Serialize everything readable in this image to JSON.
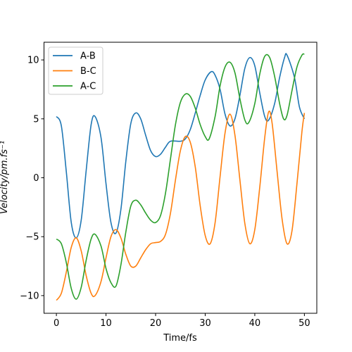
{
  "chart_data": {
    "type": "line",
    "title": "",
    "xlabel": "Time/fs",
    "ylabel": "Velocity/pm.fs⁻¹",
    "xlim": [
      -2.5,
      52.5
    ],
    "ylim": [
      -11.5,
      11.5
    ],
    "x_ticks": [
      "0",
      "10",
      "20",
      "30",
      "40",
      "50"
    ],
    "y_ticks": [
      "−10",
      "−5",
      "0",
      "5",
      "10"
    ],
    "grid": false,
    "legend_position": "top-left",
    "series": [
      {
        "name": "A-B",
        "color": "#1f77b4",
        "points": [
          [
            0,
            5.2
          ],
          [
            1,
            4.4
          ],
          [
            2,
            0.5
          ],
          [
            3,
            -3.8
          ],
          [
            4,
            -5.1
          ],
          [
            5,
            -3.6
          ],
          [
            6,
            0.6
          ],
          [
            7,
            4.5
          ],
          [
            7.8,
            5.2
          ],
          [
            9,
            3.4
          ],
          [
            10,
            -0.5
          ],
          [
            11,
            -3.8
          ],
          [
            12,
            -4.7
          ],
          [
            13,
            -2.7
          ],
          [
            14,
            1.4
          ],
          [
            15,
            4.6
          ],
          [
            16,
            5.5
          ],
          [
            17,
            5.0
          ],
          [
            18,
            3.6
          ],
          [
            19,
            2.3
          ],
          [
            20,
            1.8
          ],
          [
            21,
            2.0
          ],
          [
            22,
            2.6
          ],
          [
            23,
            3.1
          ],
          [
            25,
            3.1
          ],
          [
            26,
            3.3
          ],
          [
            27,
            4.1
          ],
          [
            28,
            5.5
          ],
          [
            29,
            7.0
          ],
          [
            30,
            8.3
          ],
          [
            31.2,
            9.0
          ],
          [
            32,
            8.7
          ],
          [
            33,
            7.5
          ],
          [
            34,
            5.4
          ],
          [
            35,
            4.4
          ],
          [
            36,
            5.0
          ],
          [
            37,
            7.0
          ],
          [
            38,
            9.3
          ],
          [
            39,
            10.2
          ],
          [
            40,
            9.5
          ],
          [
            41,
            7.2
          ],
          [
            42,
            5.2
          ],
          [
            42.8,
            4.9
          ],
          [
            44,
            6.3
          ],
          [
            45,
            8.5
          ],
          [
            46,
            10.2
          ],
          [
            46.5,
            10.4
          ],
          [
            48,
            8.5
          ],
          [
            49,
            6.0
          ],
          [
            50,
            5.0
          ]
        ]
      },
      {
        "name": "B-C",
        "color": "#ff7f0e",
        "points": [
          [
            0,
            -10.4
          ],
          [
            1,
            -9.8
          ],
          [
            2,
            -8.0
          ],
          [
            3,
            -5.9
          ],
          [
            4,
            -5.1
          ],
          [
            5,
            -6.2
          ],
          [
            6,
            -8.3
          ],
          [
            7,
            -9.8
          ],
          [
            7.8,
            -10.0
          ],
          [
            9,
            -8.8
          ],
          [
            10,
            -6.8
          ],
          [
            11,
            -5.0
          ],
          [
            12,
            -4.4
          ],
          [
            13,
            -5.1
          ],
          [
            14,
            -6.5
          ],
          [
            15,
            -7.5
          ],
          [
            16,
            -7.5
          ],
          [
            17,
            -6.8
          ],
          [
            18,
            -6.1
          ],
          [
            19,
            -5.6
          ],
          [
            20,
            -5.5
          ],
          [
            21,
            -5.4
          ],
          [
            22,
            -4.8
          ],
          [
            23,
            -3.0
          ],
          [
            24,
            -0.2
          ],
          [
            25,
            2.3
          ],
          [
            26,
            3.5
          ],
          [
            27,
            3.0
          ],
          [
            28,
            0.9
          ],
          [
            29,
            -2.4
          ],
          [
            30,
            -4.9
          ],
          [
            31,
            -5.6
          ],
          [
            32,
            -3.8
          ],
          [
            33,
            0.1
          ],
          [
            34,
            3.8
          ],
          [
            35,
            5.4
          ],
          [
            36,
            3.6
          ],
          [
            37,
            -0.2
          ],
          [
            38,
            -3.9
          ],
          [
            39,
            -5.6
          ],
          [
            40,
            -4.4
          ],
          [
            41,
            -0.8
          ],
          [
            42,
            3.4
          ],
          [
            42.8,
            5.6
          ],
          [
            43.5,
            4.6
          ],
          [
            44.5,
            0.5
          ],
          [
            45.5,
            -3.5
          ],
          [
            46.5,
            -5.6
          ],
          [
            47.5,
            -4.5
          ],
          [
            48.5,
            -0.5
          ],
          [
            49.5,
            3.9
          ],
          [
            50,
            5.5
          ]
        ]
      },
      {
        "name": "A-C",
        "color": "#2ca02c",
        "points": [
          [
            0,
            -5.2
          ],
          [
            1,
            -5.6
          ],
          [
            2,
            -7.2
          ],
          [
            3,
            -9.4
          ],
          [
            4,
            -10.3
          ],
          [
            5,
            -9.3
          ],
          [
            6,
            -7.0
          ],
          [
            7,
            -5.2
          ],
          [
            7.8,
            -4.8
          ],
          [
            9,
            -5.8
          ],
          [
            10,
            -7.7
          ],
          [
            11,
            -8.9
          ],
          [
            12,
            -9.2
          ],
          [
            13,
            -7.4
          ],
          [
            14,
            -4.6
          ],
          [
            15,
            -2.4
          ],
          [
            16,
            -1.9
          ],
          [
            17,
            -2.3
          ],
          [
            18,
            -3.0
          ],
          [
            19,
            -3.6
          ],
          [
            20,
            -3.8
          ],
          [
            21,
            -3.2
          ],
          [
            22,
            -1.3
          ],
          [
            23,
            1.6
          ],
          [
            24,
            4.5
          ],
          [
            25,
            6.4
          ],
          [
            26,
            7.1
          ],
          [
            27,
            6.9
          ],
          [
            28,
            5.9
          ],
          [
            29,
            4.5
          ],
          [
            30,
            3.5
          ],
          [
            30.8,
            3.3
          ],
          [
            32,
            5.2
          ],
          [
            33,
            7.8
          ],
          [
            34,
            9.4
          ],
          [
            35,
            9.8
          ],
          [
            36,
            8.9
          ],
          [
            37,
            6.7
          ],
          [
            38,
            4.9
          ],
          [
            38.8,
            4.7
          ],
          [
            40,
            6.3
          ],
          [
            41,
            8.8
          ],
          [
            42,
            10.3
          ],
          [
            43,
            10.2
          ],
          [
            44,
            8.6
          ],
          [
            45,
            6.3
          ],
          [
            45.8,
            5.0
          ],
          [
            46.5,
            5.3
          ],
          [
            47.5,
            7.4
          ],
          [
            48.5,
            9.4
          ],
          [
            49.5,
            10.4
          ],
          [
            50,
            10.5
          ]
        ]
      }
    ]
  }
}
